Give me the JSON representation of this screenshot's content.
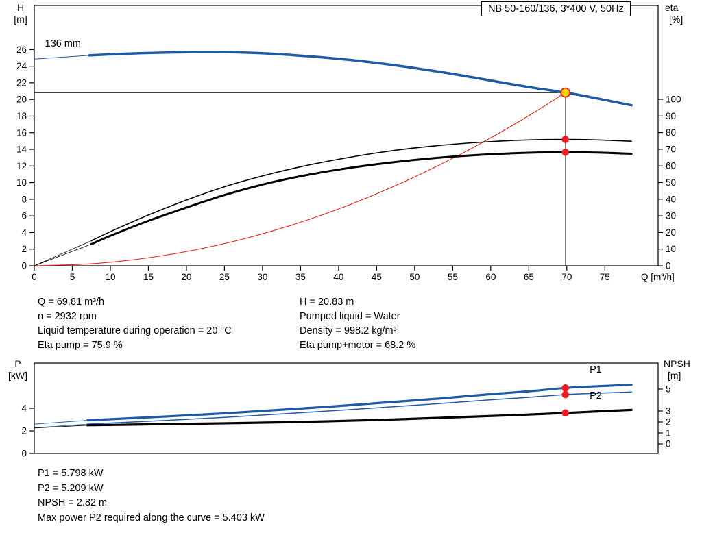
{
  "colors": {
    "blue": "#1d5ba4",
    "black": "#000000",
    "red": "#f02419",
    "gray": "#555555",
    "marker": "#ee1c23",
    "yellow": "#ffd400"
  },
  "info": {
    "left": [
      "Q = 69.81 m³/h",
      "n = 2932 rpm",
      "Liquid temperature during operation = 20 °C",
      "Eta pump = 75.9 %"
    ],
    "right": [
      "H = 20.83 m",
      "Pumped liquid = Water",
      "Density = 998.2 kg/m³",
      "Eta pump+motor = 68.2 %"
    ]
  },
  "footer": {
    "lines": [
      "P1 = 5.798 kW",
      "P2 = 5.209 kW",
      "NPSH = 2.82 m",
      "Max power P2 required along the curve = 5.403 kW"
    ]
  },
  "chart_data": [
    {
      "type": "line",
      "title": "NB 50-160/136, 3*400 V, 50Hz",
      "x_axis": {
        "label": "Q [m³/h]",
        "min": 0,
        "max": 82,
        "ticks": [
          0,
          5,
          10,
          15,
          20,
          25,
          30,
          35,
          40,
          45,
          50,
          55,
          60,
          65,
          70,
          75
        ]
      },
      "y_left": {
        "label": [
          "H",
          "[m]"
        ],
        "min": 0,
        "max": 31.3,
        "ticks": [
          0,
          2,
          4,
          6,
          8,
          10,
          12,
          14,
          16,
          18,
          20,
          22,
          24,
          26
        ]
      },
      "y_right": {
        "label": [
          "eta",
          "[%]"
        ],
        "min": 0,
        "max": 156.4,
        "ticks": [
          0,
          10,
          20,
          30,
          40,
          50,
          60,
          70,
          80,
          90,
          100
        ]
      },
      "series": [
        {
          "name": "pump-curve-lead",
          "color": "blue",
          "width": 1,
          "axis": "left",
          "points": [
            [
              0,
              24.85
            ],
            [
              7.2,
              25.3
            ]
          ]
        },
        {
          "name": "eta-pump-lead",
          "color": "black",
          "width": 0.8,
          "axis": "right",
          "points": [
            [
              0,
              0
            ],
            [
              7.5,
              15
            ]
          ]
        },
        {
          "name": "eta-pump-motor-lead",
          "color": "black",
          "width": 0.8,
          "axis": "right",
          "points": [
            [
              0,
              0
            ],
            [
              7.5,
              13
            ]
          ]
        },
        {
          "name": "system-curve",
          "color": "red",
          "width": 1.1,
          "axis": "left",
          "points": [
            [
              0,
              0
            ],
            [
              8,
              0.27
            ],
            [
              16,
              1.09
            ],
            [
              24,
              2.46
            ],
            [
              32,
              4.38
            ],
            [
              40,
              6.84
            ],
            [
              48,
              9.85
            ],
            [
              56,
              13.4
            ],
            [
              62,
              16.43
            ],
            [
              66,
              18.62
            ],
            [
              69.81,
              20.83
            ]
          ]
        },
        {
          "name": "eta-pump-curve",
          "color": "black",
          "width": 1.6,
          "axis": "right",
          "points": [
            [
              7.5,
              15
            ],
            [
              10,
              20.5
            ],
            [
              15,
              30.5
            ],
            [
              20,
              39.5
            ],
            [
              25,
              47.5
            ],
            [
              30,
              54
            ],
            [
              35,
              59.5
            ],
            [
              40,
              64
            ],
            [
              45,
              67.8
            ],
            [
              50,
              70.8
            ],
            [
              55,
              73
            ],
            [
              60,
              74.6
            ],
            [
              65,
              75.6
            ],
            [
              69.81,
              75.9
            ],
            [
              74,
              75.6
            ],
            [
              78.5,
              74.8
            ]
          ]
        },
        {
          "name": "eta-pump-motor-curve",
          "color": "black",
          "width": 3,
          "axis": "right",
          "points": [
            [
              7.5,
              13
            ],
            [
              10,
              18
            ],
            [
              15,
              27
            ],
            [
              20,
              35
            ],
            [
              25,
              42.5
            ],
            [
              30,
              48.8
            ],
            [
              35,
              53.8
            ],
            [
              40,
              57.8
            ],
            [
              45,
              61
            ],
            [
              50,
              63.6
            ],
            [
              55,
              65.6
            ],
            [
              60,
              67
            ],
            [
              65,
              67.9
            ],
            [
              69.81,
              68.2
            ],
            [
              74,
              68
            ],
            [
              78.5,
              67.3
            ]
          ]
        },
        {
          "name": "pump-curve",
          "color": "blue",
          "width": 3.5,
          "axis": "left",
          "points": [
            [
              7.2,
              25.3
            ],
            [
              10,
              25.42
            ],
            [
              14,
              25.56
            ],
            [
              18,
              25.65
            ],
            [
              22,
              25.7
            ],
            [
              26,
              25.68
            ],
            [
              30,
              25.55
            ],
            [
              34,
              25.33
            ],
            [
              38,
              25.05
            ],
            [
              42,
              24.7
            ],
            [
              46,
              24.28
            ],
            [
              50,
              23.78
            ],
            [
              54,
              23.22
            ],
            [
              58,
              22.6
            ],
            [
              62,
              21.95
            ],
            [
              66,
              21.35
            ],
            [
              69.81,
              20.83
            ],
            [
              73,
              20.3
            ],
            [
              76,
              19.75
            ],
            [
              78.5,
              19.3
            ]
          ]
        }
      ],
      "ref_lines": [
        {
          "type": "h",
          "axis": "left",
          "value": 20.83,
          "x1": 0,
          "x2": 69.81,
          "color": "black",
          "width": 1.2
        },
        {
          "type": "v",
          "axis": "left",
          "x": 69.81,
          "v1": 0,
          "v2": 20.83,
          "color": "gray",
          "width": 1
        }
      ],
      "markers": [
        {
          "q": 69.81,
          "value": 75.9,
          "axis": "right",
          "style": "dot",
          "name": "eta-pump-operating-dot"
        },
        {
          "q": 69.81,
          "value": 68.2,
          "axis": "right",
          "style": "dot",
          "name": "eta-motor-operating-dot"
        },
        {
          "q": 69.81,
          "value": 20.83,
          "axis": "left",
          "style": "duty",
          "name": "duty-point"
        }
      ],
      "annotations": [
        {
          "text": "136 mm",
          "q": 1.4,
          "value": 26.35,
          "axis": "left",
          "color": "black",
          "anchor": "start"
        }
      ]
    },
    {
      "type": "line",
      "title": "",
      "x_axis": {
        "label": "",
        "min": 0,
        "max": 82,
        "ticks": []
      },
      "y_left": {
        "label": [
          "P",
          "[kW]"
        ],
        "min": 0,
        "max": 8.0,
        "ticks": [
          0,
          2,
          4
        ]
      },
      "y_right": {
        "label": [
          "NPSH",
          "[m]"
        ],
        "min": -0.875,
        "max": 7.375,
        "ticks": [
          0,
          1,
          2,
          3,
          5
        ]
      },
      "series": [
        {
          "name": "p1-lead",
          "color": "blue",
          "width": 1,
          "axis": "left",
          "points": [
            [
              0,
              2.6
            ],
            [
              7,
              2.93
            ]
          ]
        },
        {
          "name": "p2-lead",
          "color": "blue",
          "width": 0.8,
          "axis": "left",
          "points": [
            [
              0,
              2.28
            ],
            [
              7,
              2.6
            ]
          ]
        },
        {
          "name": "npsh-lead",
          "color": "black",
          "width": 0.8,
          "axis": "right",
          "points": [
            [
              0,
              1.45
            ],
            [
              7,
              1.7
            ]
          ]
        },
        {
          "name": "p2-curve",
          "color": "blue",
          "width": 1.5,
          "axis": "left",
          "points": [
            [
              7,
              2.6
            ],
            [
              12,
              2.76
            ],
            [
              18,
              2.95
            ],
            [
              25,
              3.2
            ],
            [
              32,
              3.48
            ],
            [
              39,
              3.77
            ],
            [
              46,
              4.08
            ],
            [
              53,
              4.4
            ],
            [
              60,
              4.75
            ],
            [
              65,
              4.97
            ],
            [
              69.81,
              5.209
            ],
            [
              74,
              5.33
            ],
            [
              78.5,
              5.44
            ]
          ]
        },
        {
          "name": "p1-curve",
          "color": "blue",
          "width": 3.2,
          "axis": "left",
          "points": [
            [
              7,
              2.93
            ],
            [
              12,
              3.1
            ],
            [
              18,
              3.3
            ],
            [
              25,
              3.55
            ],
            [
              32,
              3.85
            ],
            [
              39,
              4.15
            ],
            [
              46,
              4.5
            ],
            [
              53,
              4.85
            ],
            [
              60,
              5.25
            ],
            [
              65,
              5.5
            ],
            [
              69.81,
              5.798
            ],
            [
              74,
              5.95
            ],
            [
              78.5,
              6.08
            ]
          ]
        },
        {
          "name": "npsh-curve",
          "color": "black",
          "width": 3.2,
          "axis": "right",
          "points": [
            [
              7,
              1.7
            ],
            [
              15,
              1.78
            ],
            [
              25,
              1.88
            ],
            [
              35,
              2.0
            ],
            [
              45,
              2.18
            ],
            [
              55,
              2.42
            ],
            [
              63,
              2.62
            ],
            [
              69.81,
              2.82
            ],
            [
              74,
              2.96
            ],
            [
              78.5,
              3.1
            ]
          ]
        }
      ],
      "ref_lines": [],
      "markers": [
        {
          "q": 69.81,
          "value": 5.798,
          "axis": "left",
          "style": "dot",
          "name": "p1-operating-dot"
        },
        {
          "q": 69.81,
          "value": 5.209,
          "axis": "left",
          "style": "dot",
          "name": "p2-operating-dot"
        },
        {
          "q": 69.81,
          "value": 2.82,
          "axis": "right",
          "style": "dot",
          "name": "npsh-operating-dot"
        }
      ],
      "annotations": [
        {
          "text": "P1",
          "q": 73,
          "value": 7.15,
          "axis": "left",
          "color": "blue",
          "anchor": "start"
        },
        {
          "text": "P2",
          "q": 73,
          "value": 4.85,
          "axis": "left",
          "color": "blue",
          "anchor": "start"
        }
      ]
    }
  ]
}
